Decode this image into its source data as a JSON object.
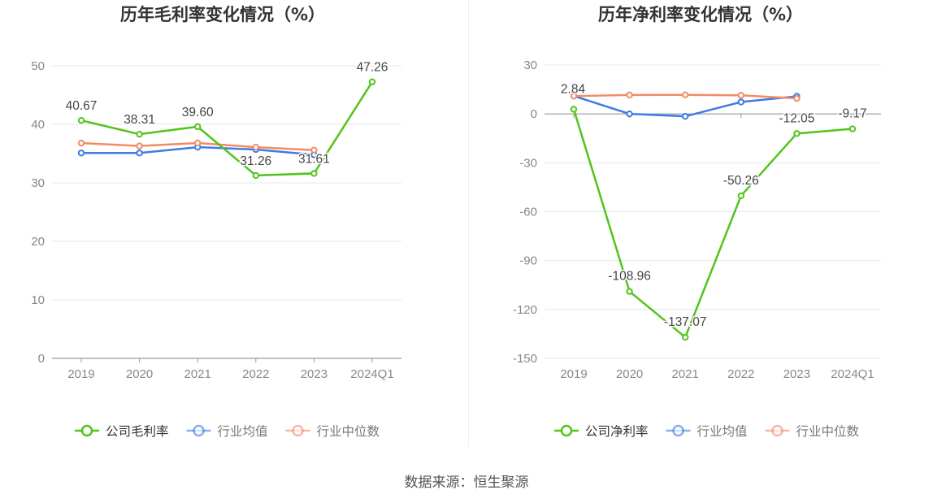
{
  "chart_data": [
    {
      "type": "line",
      "title": "历年毛利率变化情况（%）",
      "categories": [
        "2019",
        "2020",
        "2021",
        "2022",
        "2023",
        "2024Q1"
      ],
      "ylim": [
        0,
        50
      ],
      "yticks": [
        0,
        10,
        20,
        30,
        40,
        50
      ],
      "grid": true,
      "legend_position": "bottom",
      "series": [
        {
          "name": "公司毛利率",
          "color": "#52c41a",
          "labeled": true,
          "values": [
            40.67,
            38.31,
            39.6,
            31.26,
            31.61,
            47.26
          ],
          "labels": [
            "40.67",
            "38.31",
            "39.60",
            "31.26",
            "31.61",
            "47.26"
          ]
        },
        {
          "name": "行业均值",
          "color": "#3e7be6",
          "labeled": false,
          "values": [
            35.1,
            35.1,
            36.1,
            35.7,
            34.8,
            null
          ]
        },
        {
          "name": "行业中位数",
          "color": "#f28b66",
          "labeled": false,
          "values": [
            36.8,
            36.3,
            36.8,
            36.1,
            35.6,
            null
          ]
        }
      ]
    },
    {
      "type": "line",
      "title": "历年净利率变化情况（%）",
      "categories": [
        "2019",
        "2020",
        "2021",
        "2022",
        "2023",
        "2024Q1"
      ],
      "ylim": [
        -150,
        30
      ],
      "yticks": [
        -150,
        -120,
        -90,
        -60,
        -30,
        0,
        30
      ],
      "grid": true,
      "legend_position": "bottom",
      "series": [
        {
          "name": "公司净利率",
          "color": "#52c41a",
          "labeled": true,
          "values": [
            2.84,
            -108.96,
            -137.07,
            -50.26,
            -12.05,
            -9.17
          ],
          "labels": [
            "2.84",
            "-108.96",
            "-137.07",
            "-50.26",
            "-12.05",
            "-9.17"
          ]
        },
        {
          "name": "行业均值",
          "color": "#3e7be6",
          "labeled": false,
          "values": [
            11.0,
            0.0,
            -1.5,
            7.3,
            10.8,
            null
          ]
        },
        {
          "name": "行业中位数",
          "color": "#f28b66",
          "labeled": false,
          "values": [
            10.9,
            11.6,
            11.7,
            11.4,
            9.5,
            null
          ]
        }
      ]
    }
  ],
  "footer": {
    "source": "数据来源：恒生聚源"
  }
}
